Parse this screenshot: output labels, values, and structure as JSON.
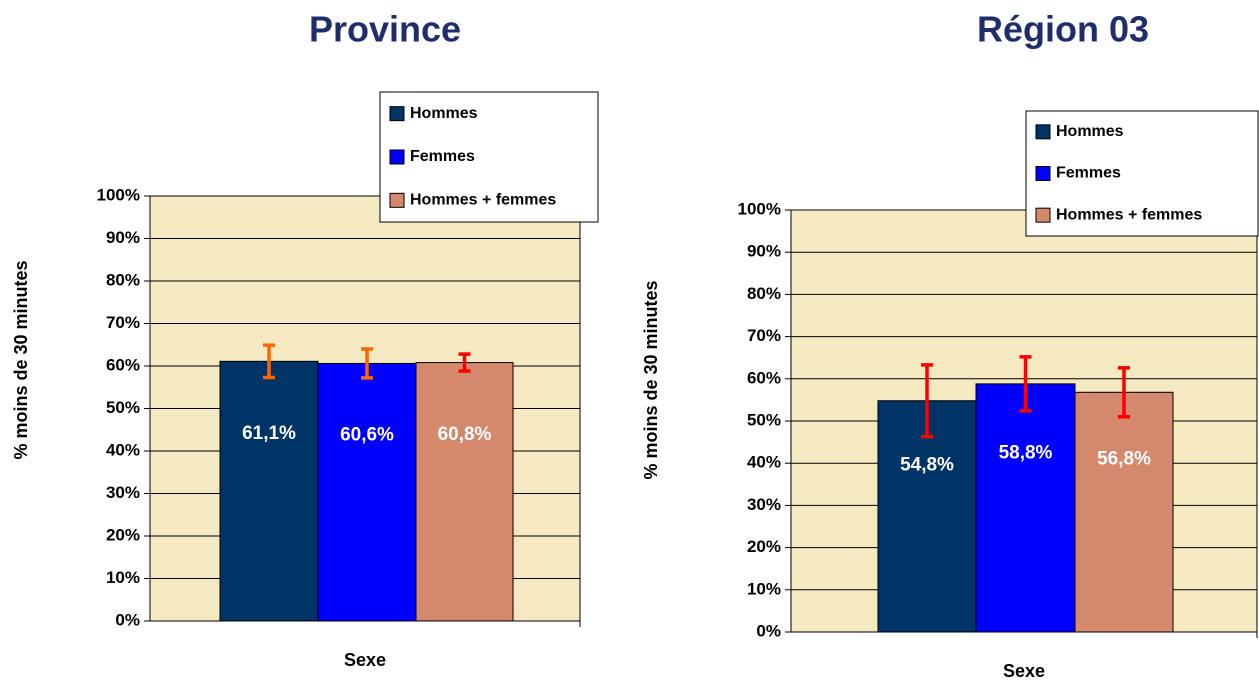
{
  "chart_data": [
    {
      "type": "bar",
      "title": "Province",
      "y_label": "% moins de 30 minutes",
      "x_label": "Sexe",
      "categories": [
        null
      ],
      "ylim": [
        0,
        100
      ],
      "yticks": [
        {
          "value": 0,
          "label": "0%"
        },
        {
          "value": 10,
          "label": "10%"
        },
        {
          "value": 20,
          "label": "20%"
        },
        {
          "value": 30,
          "label": "30%"
        },
        {
          "value": 40,
          "label": "40%"
        },
        {
          "value": 50,
          "label": "50%"
        },
        {
          "value": 60,
          "label": "60%"
        },
        {
          "value": 70,
          "label": "70%"
        },
        {
          "value": 80,
          "label": "80%"
        },
        {
          "value": 90,
          "label": "90%"
        },
        {
          "value": 100,
          "label": "100%"
        }
      ],
      "grid": true,
      "legend": "upper right",
      "series": [
        {
          "name": "Hommes",
          "color": "#003366",
          "values": [
            61.1
          ],
          "value_labels": [
            "61,1%"
          ],
          "errors": [
            3.8
          ],
          "error_color": "#ff6600"
        },
        {
          "name": "Femmes",
          "color": "#0000ff",
          "values": [
            60.6
          ],
          "value_labels": [
            "60,6%"
          ],
          "errors": [
            3.4
          ],
          "error_color": "#ff6600"
        },
        {
          "name": "Hommes + femmes",
          "color": "#d4886c",
          "values": [
            60.8
          ],
          "value_labels": [
            "60,8%"
          ],
          "errors": [
            2.0
          ],
          "error_color": "#ff0000"
        }
      ]
    },
    {
      "type": "bar",
      "title": "Région 03",
      "y_label": "% moins de 30 minutes",
      "x_label": "Sexe",
      "categories": [
        null
      ],
      "ylim": [
        0,
        100
      ],
      "yticks": [
        {
          "value": 0,
          "label": "0%"
        },
        {
          "value": 10,
          "label": "10%"
        },
        {
          "value": 20,
          "label": "20%"
        },
        {
          "value": 30,
          "label": "30%"
        },
        {
          "value": 40,
          "label": "40%"
        },
        {
          "value": 50,
          "label": "50%"
        },
        {
          "value": 60,
          "label": "60%"
        },
        {
          "value": 70,
          "label": "70%"
        },
        {
          "value": 80,
          "label": "80%"
        },
        {
          "value": 90,
          "label": "90%"
        },
        {
          "value": 100,
          "label": "100%"
        }
      ],
      "grid": true,
      "legend": "upper right",
      "series": [
        {
          "name": "Hommes",
          "color": "#003366",
          "values": [
            54.8
          ],
          "value_labels": [
            "54,8%"
          ],
          "errors": [
            8.5
          ],
          "error_color": "#ff0000"
        },
        {
          "name": "Femmes",
          "color": "#0000ff",
          "values": [
            58.8
          ],
          "value_labels": [
            "58,8%"
          ],
          "errors": [
            6.4
          ],
          "error_color": "#ff0000"
        },
        {
          "name": "Hommes + femmes",
          "color": "#d4886c",
          "values": [
            56.8
          ],
          "value_labels": [
            "56,8%"
          ],
          "errors": [
            5.8
          ],
          "error_color": "#ff0000"
        }
      ]
    }
  ]
}
